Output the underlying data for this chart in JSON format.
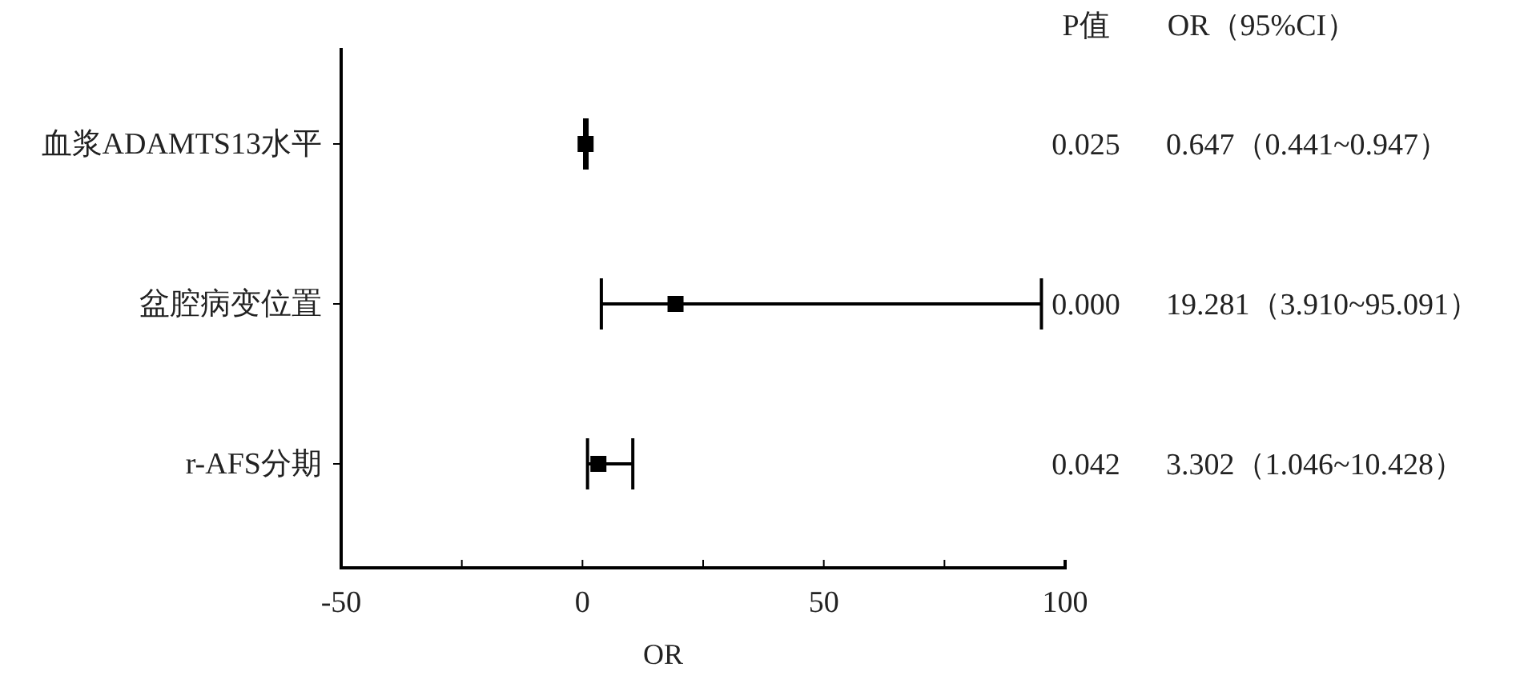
{
  "chart_data": {
    "type": "scatter",
    "orientation": "horizontal",
    "xlabel": "OR",
    "categories": [
      "血浆ADAMTS13水平",
      "盆腔病变位置",
      "r-AFS分期"
    ],
    "values": [
      0.647,
      19.281,
      3.302
    ],
    "errors": [
      [
        0.441,
        0.947
      ],
      [
        3.91,
        95.091
      ],
      [
        1.046,
        10.428
      ]
    ],
    "color": "#000000",
    "xlim": [
      -50,
      100
    ],
    "xticks": [
      -50,
      {
        "value": -25,
        "label": null
      },
      0,
      {
        "value": 25,
        "label": null
      },
      50,
      {
        "value": 75,
        "label": null
      },
      100
    ],
    "annotations": [
      "P值",
      "OR（95%CI）",
      "0.025",
      "0.000",
      "0.042",
      "0.647（0.441~0.947）",
      "19.281（3.910~95.091）",
      "3.302（1.046~10.428）"
    ],
    "marker": "square",
    "grid": false
  }
}
